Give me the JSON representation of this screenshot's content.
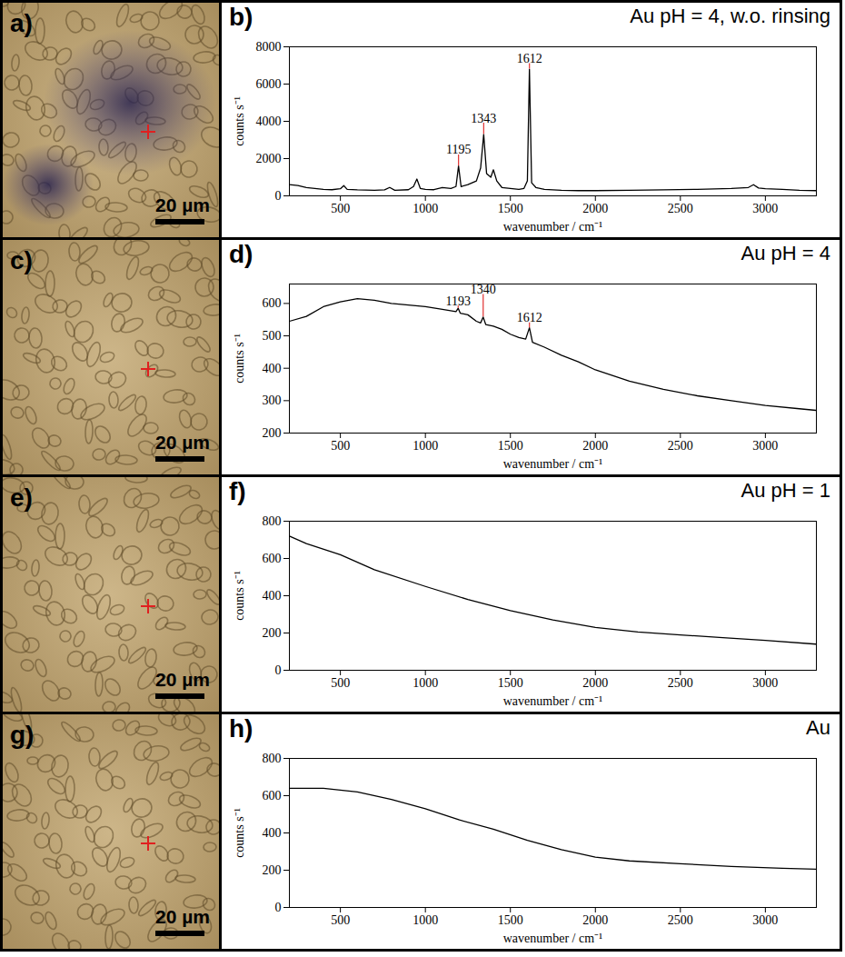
{
  "chart_data": [
    {
      "type": "line",
      "panel_label": "b)",
      "title": "Au pH = 4, w.o. rinsing",
      "x_label": "wavenumber / cm⁻¹",
      "y_label": "counts s⁻¹",
      "color": "#000000",
      "x": [
        200,
        250,
        300,
        350,
        400,
        450,
        500,
        520,
        540,
        600,
        700,
        760,
        790,
        820,
        900,
        930,
        950,
        970,
        1000,
        1050,
        1100,
        1150,
        1180,
        1195,
        1210,
        1250,
        1300,
        1325,
        1343,
        1360,
        1385,
        1400,
        1420,
        1450,
        1500,
        1550,
        1580,
        1600,
        1612,
        1625,
        1650,
        1700,
        1800,
        1900,
        2000,
        2200,
        2400,
        2600,
        2800,
        2900,
        2930,
        2960,
        3000,
        3100,
        3200,
        3300
      ],
      "values": [
        600,
        550,
        450,
        400,
        350,
        330,
        380,
        550,
        350,
        320,
        300,
        320,
        450,
        300,
        330,
        500,
        900,
        400,
        350,
        330,
        450,
        400,
        500,
        1600,
        500,
        600,
        800,
        1500,
        3300,
        1200,
        1000,
        1400,
        800,
        450,
        400,
        350,
        400,
        800,
        6800,
        700,
        450,
        350,
        300,
        280,
        280,
        300,
        320,
        350,
        400,
        450,
        600,
        420,
        380,
        350,
        300,
        280
      ],
      "xlim": [
        200,
        3300
      ],
      "xticks": [
        500,
        1000,
        1500,
        2000,
        2500,
        3000
      ],
      "ylim": [
        0,
        8000
      ],
      "yticks": [
        0,
        2000,
        4000,
        6000,
        8000
      ],
      "annotations": [
        {
          "x": 1195,
          "y": 2200,
          "label": "1195",
          "color": "#e03030"
        },
        {
          "x": 1343,
          "y": 3900,
          "label": "1343",
          "color": "#e03030"
        },
        {
          "x": 1612,
          "y": 7100,
          "label": "1612",
          "color": "#e03030"
        }
      ]
    },
    {
      "type": "line",
      "panel_label": "d)",
      "title": "Au pH = 4",
      "x_label": "wavenumber / cm⁻¹",
      "y_label": "counts s⁻¹",
      "color": "#000000",
      "x": [
        200,
        300,
        400,
        500,
        600,
        700,
        800,
        900,
        1000,
        1100,
        1180,
        1193,
        1205,
        1250,
        1300,
        1325,
        1340,
        1355,
        1400,
        1450,
        1500,
        1550,
        1590,
        1612,
        1630,
        1700,
        1800,
        1900,
        2000,
        2200,
        2400,
        2600,
        2800,
        3000,
        3200,
        3300
      ],
      "values": [
        545,
        560,
        590,
        605,
        615,
        610,
        600,
        595,
        590,
        582,
        575,
        585,
        570,
        565,
        545,
        540,
        558,
        535,
        530,
        520,
        505,
        495,
        490,
        525,
        480,
        465,
        440,
        420,
        395,
        360,
        335,
        315,
        300,
        285,
        275,
        270
      ],
      "xlim": [
        200,
        3300
      ],
      "xticks": [
        500,
        1000,
        1500,
        2000,
        2500,
        3000
      ],
      "ylim": [
        200,
        660
      ],
      "yticks": [
        200,
        300,
        400,
        500,
        600
      ],
      "annotations": [
        {
          "x": 1193,
          "y": 592,
          "label": "1193",
          "color": "#e03030"
        },
        {
          "x": 1340,
          "y": 628,
          "label": "1340",
          "color": "#e03030"
        },
        {
          "x": 1612,
          "y": 540,
          "label": "1612",
          "color": "#e03030"
        }
      ]
    },
    {
      "type": "line",
      "panel_label": "f)",
      "title": "Au pH = 1",
      "x_label": "wavenumber / cm⁻¹",
      "y_label": "counts s⁻¹",
      "color": "#000000",
      "x": [
        200,
        300,
        500,
        700,
        1000,
        1250,
        1500,
        1750,
        2000,
        2250,
        2500,
        2750,
        3000,
        3300
      ],
      "values": [
        720,
        680,
        620,
        540,
        450,
        380,
        320,
        270,
        230,
        205,
        190,
        175,
        160,
        140
      ],
      "xlim": [
        200,
        3300
      ],
      "xticks": [
        500,
        1000,
        1500,
        2000,
        2500,
        3000
      ],
      "ylim": [
        0,
        800
      ],
      "yticks": [
        0,
        200,
        400,
        600,
        800
      ],
      "annotations": []
    },
    {
      "type": "line",
      "panel_label": "h)",
      "title": "Au",
      "x_label": "wavenumber / cm⁻¹",
      "y_label": "counts s⁻¹",
      "color": "#000000",
      "x": [
        200,
        400,
        600,
        800,
        1000,
        1200,
        1400,
        1600,
        1800,
        2000,
        2200,
        2500,
        2800,
        3100,
        3300
      ],
      "values": [
        640,
        640,
        620,
        580,
        530,
        470,
        420,
        360,
        310,
        270,
        250,
        235,
        220,
        210,
        205
      ],
      "xlim": [
        200,
        3300
      ],
      "xticks": [
        500,
        1000,
        1500,
        2000,
        2500,
        3000
      ],
      "ylim": [
        0,
        800
      ],
      "yticks": [
        0,
        200,
        400,
        600,
        800
      ],
      "annotations": []
    }
  ],
  "micrographs": [
    {
      "label": "a)",
      "scale_bar": "20 µm"
    },
    {
      "label": "c)",
      "scale_bar": "20 µm"
    },
    {
      "label": "e)",
      "scale_bar": "20 µm"
    },
    {
      "label": "g)",
      "scale_bar": "20 µm"
    }
  ]
}
